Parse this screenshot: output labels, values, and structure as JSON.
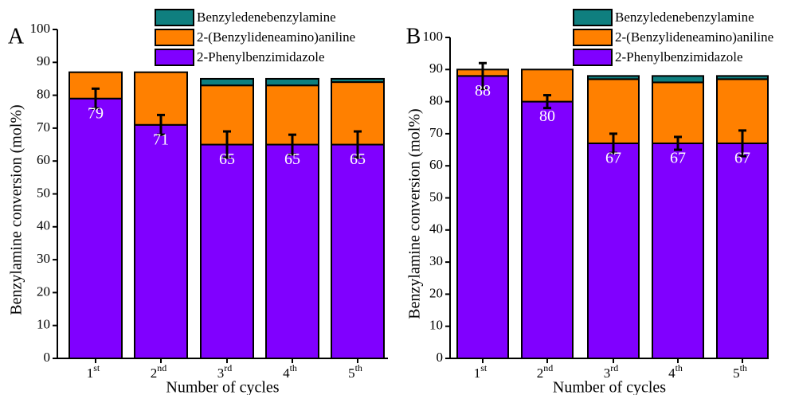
{
  "chart_data": [
    {
      "type": "bar",
      "stacked": true,
      "panel": "A",
      "x_label": "Number of cycles",
      "y_label": "Benzylamine conversion (mol%)",
      "categories": [
        "1st",
        "2nd",
        "3rd",
        "4th",
        "5th"
      ],
      "series": [
        {
          "name": "2-Phenylbenzimidazole",
          "color": "#8000ff",
          "values": [
            79,
            71,
            65,
            65,
            65
          ],
          "errors": [
            3,
            3,
            4,
            3,
            4
          ]
        },
        {
          "name": "2-(Benzylideneamino)aniline",
          "color": "#ff8000",
          "values": [
            8,
            16,
            18,
            18,
            19
          ]
        },
        {
          "name": "Benzyledenebenzylamine",
          "color": "#0f7f7f",
          "values": [
            0,
            0,
            2,
            2,
            1
          ]
        }
      ],
      "ylim": [
        0,
        100
      ],
      "yticks": [
        0,
        10,
        20,
        30,
        40,
        50,
        60,
        70,
        80,
        90,
        100
      ]
    },
    {
      "type": "bar",
      "stacked": true,
      "panel": "B",
      "x_label": "Number of cycles",
      "y_label": "Benzylamine conversion (mol%)",
      "categories": [
        "1st",
        "2nd",
        "3rd",
        "4th",
        "5th"
      ],
      "series": [
        {
          "name": "2-Phenylbenzimidazole",
          "color": "#8000ff",
          "values": [
            88,
            80,
            67,
            67,
            67
          ],
          "errors": [
            4,
            2,
            3,
            2,
            4
          ]
        },
        {
          "name": "2-(Benzylideneamino)aniline",
          "color": "#ff8000",
          "values": [
            2,
            10,
            20,
            19,
            20
          ]
        },
        {
          "name": "Benzyledenebenzylamine",
          "color": "#0f7f7f",
          "values": [
            0,
            0,
            1,
            2,
            1
          ]
        }
      ],
      "ylim": [
        0,
        100
      ],
      "yticks": [
        0,
        10,
        20,
        30,
        40,
        50,
        60,
        70,
        80,
        90,
        100
      ]
    }
  ]
}
